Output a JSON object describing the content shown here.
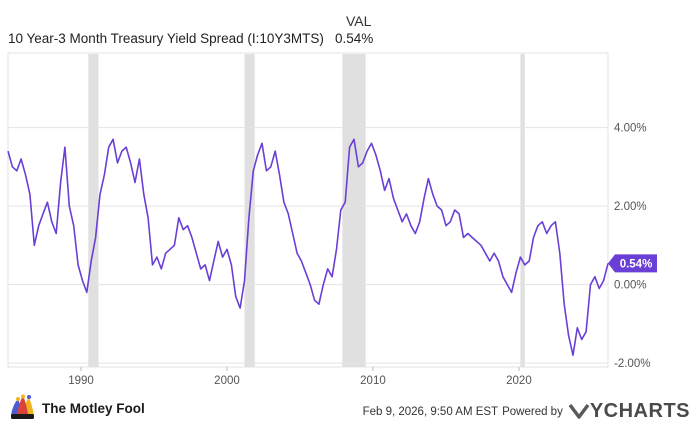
{
  "legend": {
    "column_title": "VAL",
    "series_name": "10 Year-3 Month Treasury Yield Spread (I:10Y3MTS)",
    "series_value": "0.54%"
  },
  "footer": {
    "brand": "The Motley Fool",
    "timestamp": "Feb 9, 2026, 9:50 AM EST",
    "powered_by": "Powered by",
    "provider": "YCHARTS"
  },
  "colors": {
    "line": "#6a3fd6",
    "recession": "#e0e0e0",
    "grid": "#e3e3e3"
  },
  "chart_data": {
    "type": "line",
    "xlabel": "",
    "ylabel": "",
    "xlim": [
      1985.0,
      2026.1
    ],
    "ylim": [
      -2.1,
      5.9
    ],
    "x_ticks": [
      {
        "value": 1990,
        "label": "1990"
      },
      {
        "value": 2000,
        "label": "2000"
      },
      {
        "value": 2010,
        "label": "2010"
      },
      {
        "value": 2020,
        "label": "2020"
      }
    ],
    "y_ticks": [
      {
        "value": 4,
        "label": "4.00%"
      },
      {
        "value": 2,
        "label": "2.00%"
      },
      {
        "value": 0,
        "label": "0.00%"
      },
      {
        "value": -2,
        "label": "-2.00%"
      }
    ],
    "recessions": [
      [
        1990.5,
        1991.2
      ],
      [
        2001.2,
        2001.9
      ],
      [
        2007.9,
        2009.5
      ],
      [
        2020.1,
        2020.4
      ]
    ],
    "last_value_label": "0.54%",
    "series": [
      {
        "x": [
          1985.0,
          1985.3,
          1985.6,
          1985.9,
          1986.2,
          1986.5,
          1986.8,
          1987.1,
          1987.4,
          1987.7,
          1988.0,
          1988.3,
          1988.6,
          1988.9,
          1989.2,
          1989.5,
          1989.8,
          1990.1,
          1990.4,
          1990.7,
          1991.0,
          1991.3,
          1991.6,
          1991.9,
          1992.2,
          1992.5,
          1992.8,
          1993.1,
          1993.4,
          1993.7,
          1994.0,
          1994.3,
          1994.6,
          1994.9,
          1995.2,
          1995.5,
          1995.8,
          1996.1,
          1996.4,
          1996.7,
          1997.0,
          1997.3,
          1997.6,
          1997.9,
          1998.2,
          1998.5,
          1998.8,
          1999.1,
          1999.4,
          1999.7,
          2000.0,
          2000.3,
          2000.6,
          2000.9,
          2001.2,
          2001.5,
          2001.8,
          2002.1,
          2002.4,
          2002.7,
          2003.0,
          2003.3,
          2003.6,
          2003.9,
          2004.2,
          2004.5,
          2004.8,
          2005.1,
          2005.4,
          2005.7,
          2006.0,
          2006.3,
          2006.6,
          2006.9,
          2007.2,
          2007.5,
          2007.8,
          2008.1,
          2008.4,
          2008.7,
          2009.0,
          2009.3,
          2009.6,
          2009.9,
          2010.2,
          2010.5,
          2010.8,
          2011.1,
          2011.4,
          2011.7,
          2012.0,
          2012.3,
          2012.6,
          2012.9,
          2013.2,
          2013.5,
          2013.8,
          2014.1,
          2014.4,
          2014.7,
          2015.0,
          2015.3,
          2015.6,
          2015.9,
          2016.2,
          2016.5,
          2016.8,
          2017.1,
          2017.4,
          2017.7,
          2018.0,
          2018.3,
          2018.6,
          2018.9,
          2019.2,
          2019.5,
          2019.8,
          2020.1,
          2020.4,
          2020.7,
          2021.0,
          2021.3,
          2021.6,
          2021.9,
          2022.2,
          2022.5,
          2022.8,
          2023.1,
          2023.4,
          2023.7,
          2024.0,
          2024.3,
          2024.6,
          2024.9,
          2025.2,
          2025.5,
          2025.8,
          2026.1
        ],
        "values": [
          3.4,
          3.0,
          2.9,
          3.2,
          2.8,
          2.3,
          1.0,
          1.5,
          1.8,
          2.1,
          1.6,
          1.3,
          2.6,
          3.5,
          2.0,
          1.5,
          0.5,
          0.1,
          -0.2,
          0.6,
          1.2,
          2.3,
          2.8,
          3.5,
          3.7,
          3.1,
          3.4,
          3.5,
          3.1,
          2.6,
          3.2,
          2.3,
          1.7,
          0.5,
          0.7,
          0.4,
          0.8,
          0.9,
          1.0,
          1.7,
          1.4,
          1.5,
          1.2,
          0.8,
          0.4,
          0.5,
          0.1,
          0.6,
          1.1,
          0.7,
          0.9,
          0.5,
          -0.3,
          -0.6,
          0.1,
          1.7,
          2.9,
          3.3,
          3.6,
          2.9,
          3.0,
          3.4,
          2.8,
          2.1,
          1.8,
          1.3,
          0.8,
          0.6,
          0.3,
          0.0,
          -0.4,
          -0.5,
          0.0,
          0.4,
          0.2,
          0.9,
          1.9,
          2.1,
          3.5,
          3.7,
          3.0,
          3.1,
          3.4,
          3.6,
          3.3,
          2.9,
          2.4,
          2.7,
          2.2,
          1.9,
          1.6,
          1.8,
          1.5,
          1.3,
          1.6,
          2.2,
          2.7,
          2.3,
          2.0,
          1.9,
          1.5,
          1.6,
          1.9,
          1.8,
          1.2,
          1.3,
          1.2,
          1.1,
          1.0,
          0.8,
          0.6,
          0.8,
          0.6,
          0.2,
          0.0,
          -0.2,
          0.3,
          0.7,
          0.5,
          0.6,
          1.2,
          1.5,
          1.6,
          1.3,
          1.5,
          1.6,
          0.8,
          -0.5,
          -1.3,
          -1.8,
          -1.1,
          -1.4,
          -1.2,
          0.0,
          0.2,
          -0.1,
          0.1,
          0.54
        ]
      }
    ]
  }
}
